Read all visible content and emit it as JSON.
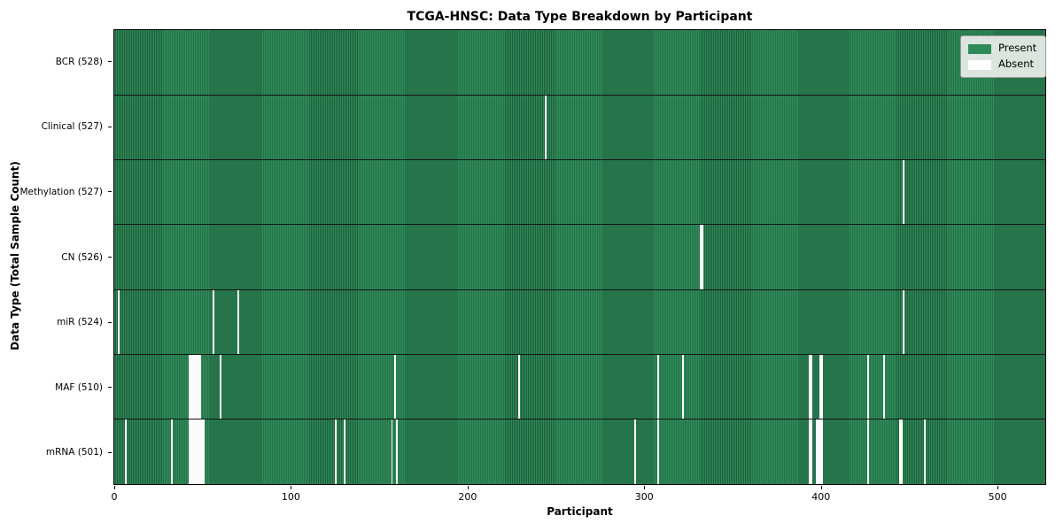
{
  "title": "TCGA-HNSC: Data Type Breakdown by Participant",
  "colors": {
    "present": "#2e8b57",
    "present_edge": "#1f5e3c",
    "absent": "#fbfbfb",
    "row_divider": "#141414",
    "legend_background": "#ececec",
    "legend_border": "#9e9e9e"
  },
  "chart_data": {
    "type": "heatmap",
    "title": "TCGA-HNSC: Data Type Breakdown by Participant",
    "xlabel": "Participant",
    "ylabel": "Data Type (Total Sample Count)",
    "n_participants": 528,
    "xlim": [
      -0.5,
      527.5
    ],
    "x_ticks": [
      0,
      100,
      200,
      300,
      400,
      500
    ],
    "x_tick_labels": [
      "0",
      "100",
      "200",
      "300",
      "400",
      "500"
    ],
    "grid": false,
    "legend_position": "upper right",
    "legend": [
      {
        "label": "Present",
        "color": "#2e8b57"
      },
      {
        "label": "Absent",
        "color": "#ffffff"
      }
    ],
    "rows": [
      {
        "label": "BCR (528)",
        "data_type": "BCR",
        "total": 528,
        "absent_participants": []
      },
      {
        "label": "Clinical (527)",
        "data_type": "Clinical",
        "total": 527,
        "absent_participants": [
          244
        ]
      },
      {
        "label": "Methylation (527)",
        "data_type": "Methylation",
        "total": 527,
        "absent_participants": [
          447
        ]
      },
      {
        "label": "CN (526)",
        "data_type": "CN",
        "total": 526,
        "absent_participants": [
          332,
          333
        ]
      },
      {
        "label": "miR (524)",
        "data_type": "miR",
        "total": 524,
        "absent_participants": [
          2,
          56,
          70,
          447
        ]
      },
      {
        "label": "MAF (510)",
        "data_type": "MAF",
        "total": 510,
        "absent_participants": [
          42,
          43,
          44,
          45,
          46,
          47,
          48,
          60,
          159,
          229,
          308,
          322,
          394,
          395,
          400,
          401,
          427,
          436
        ]
      },
      {
        "label": "mRNA (501)",
        "data_type": "mRNA",
        "total": 501,
        "absent_participants": [
          6,
          32,
          42,
          43,
          44,
          45,
          46,
          47,
          48,
          49,
          50,
          125,
          130,
          157,
          160,
          295,
          308,
          394,
          395,
          398,
          399,
          400,
          401,
          427,
          445,
          446,
          459
        ]
      }
    ]
  }
}
